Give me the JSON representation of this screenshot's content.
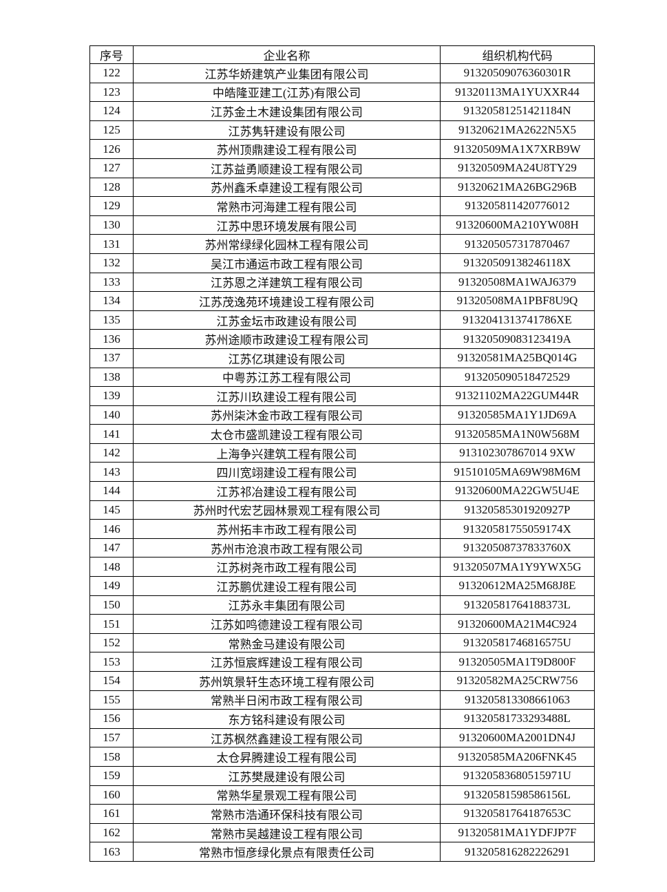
{
  "table": {
    "headers": [
      "序号",
      "企业名称",
      "组织机构代码"
    ],
    "rows": [
      [
        "122",
        "江苏华娇建筑产业集团有限公司",
        "91320509076360301R"
      ],
      [
        "123",
        "中皓隆亚建工(江苏)有限公司",
        "91320113MA1YUXXR44"
      ],
      [
        "124",
        "江苏金土木建设集团有限公司",
        "91320581251421184N"
      ],
      [
        "125",
        "江苏隽轩建设有限公司",
        "91320621MA2622N5X5"
      ],
      [
        "126",
        "苏州顶鼎建设工程有限公司",
        "91320509MA1X7XRB9W"
      ],
      [
        "127",
        "江苏益勇顺建设工程有限公司",
        "91320509MA24U8TY29"
      ],
      [
        "128",
        "苏州鑫禾卓建设工程有限公司",
        "91320621MA26BG296B"
      ],
      [
        "129",
        "常熟市河海建工程有限公司",
        "913205811420776012"
      ],
      [
        "130",
        "江苏中思环境发展有限公司",
        "91320600MA210YW08H"
      ],
      [
        "131",
        "苏州常绿绿化园林工程有限公司",
        "913205057317870467"
      ],
      [
        "132",
        "吴江市通运市政工程有限公司",
        "91320509138246118X"
      ],
      [
        "133",
        "江苏恩之洋建筑工程有限公司",
        "91320508MA1WAJ6379"
      ],
      [
        "134",
        "江苏茂逸苑环境建设工程有限公司",
        "91320508MA1PBF8U9Q"
      ],
      [
        "135",
        "江苏金坛市政建设有限公司",
        "9132041313741786XE"
      ],
      [
        "136",
        "苏州途顺市政建设工程有限公司",
        "91320509083123419A"
      ],
      [
        "137",
        "江苏亿琪建设有限公司",
        "91320581MA25BQ014G"
      ],
      [
        "138",
        "中粤苏江苏工程有限公司",
        "913205090518472529"
      ],
      [
        "139",
        "江苏川玖建设工程有限公司",
        "91321102MA22GUM44R"
      ],
      [
        "140",
        "苏州柒沐金市政工程有限公司",
        "91320585MA1Y1JD69A"
      ],
      [
        "141",
        "太仓市盛凯建设工程有限公司",
        "91320585MA1N0W568M"
      ],
      [
        "142",
        "上海争兴建筑工程有限公司",
        "913102307867014 9XW"
      ],
      [
        "143",
        "四川宽翊建设工程有限公司",
        "91510105MA69W98M6M"
      ],
      [
        "144",
        "江苏祁冶建设工程有限公司",
        "91320600MA22GW5U4E"
      ],
      [
        "145",
        "苏州时代宏艺园林景观工程有限公司",
        "91320585301920927P"
      ],
      [
        "146",
        "苏州拓丰市政工程有限公司",
        "91320581755059174X"
      ],
      [
        "147",
        "苏州市沧浪市政工程有限公司",
        "91320508737833760X"
      ],
      [
        "148",
        "江苏树尧市政工程有限公司",
        "91320507MA1Y9YWX5G"
      ],
      [
        "149",
        "江苏鹏优建设工程有限公司",
        "91320612MA25M68J8E"
      ],
      [
        "150",
        "江苏永丰集团有限公司",
        "91320581764188373L"
      ],
      [
        "151",
        "江苏如鸣德建设工程有限公司",
        "91320600MA21M4C924"
      ],
      [
        "152",
        "常熟金马建设有限公司",
        "91320581746816575U"
      ],
      [
        "153",
        "江苏恒宸辉建设工程有限公司",
        "91320505MA1T9D800F"
      ],
      [
        "154",
        "苏州筑景轩生态环境工程有限公司",
        "91320582MA25CRW756"
      ],
      [
        "155",
        "常熟半日闲市政工程有限公司",
        "913205813308661063"
      ],
      [
        "156",
        "东方铭科建设有限公司",
        "91320581733293488L"
      ],
      [
        "157",
        "江苏枫然鑫建设工程有限公司",
        "91320600MA2001DN4J"
      ],
      [
        "158",
        "太仓昇腾建设工程有限公司",
        "91320585MA206FNK45"
      ],
      [
        "159",
        "江苏樊晟建设有限公司",
        "91320583680515971U"
      ],
      [
        "160",
        "常熟华星景观工程有限公司",
        "91320581598586156L"
      ],
      [
        "161",
        "常熟市浩通环保科技有限公司",
        "91320581764187653C"
      ],
      [
        "162",
        "常熟市吴越建设工程有限公司",
        "91320581MA1YDFJP7F"
      ],
      [
        "163",
        "常熟市恒彦绿化景点有限责任公司",
        "913205816282226291"
      ]
    ]
  }
}
